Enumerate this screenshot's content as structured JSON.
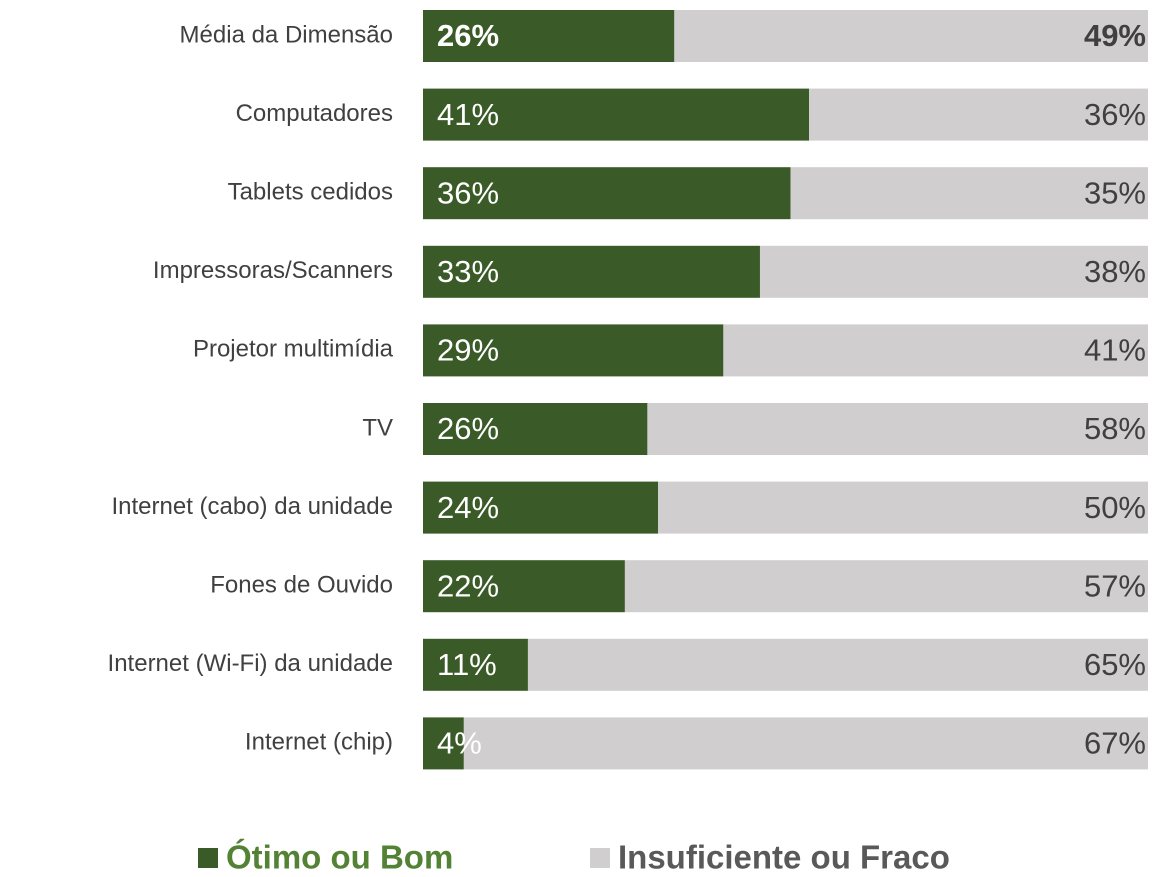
{
  "chart_data": {
    "type": "bar",
    "orientation": "horizontal",
    "stacking": "percent",
    "categories": [
      "Média da Dimensão",
      "Computadores",
      "Tablets cedidos",
      "Impressoras/Scanners",
      "Projetor multimídia",
      "TV",
      "Internet (cabo) da unidade",
      "Fones de Ouvido",
      "Internet (Wi-Fi) da unidade",
      "Internet (chip)"
    ],
    "series": [
      {
        "name": "Ótimo ou Bom",
        "color": "#3a5a27",
        "values": [
          26,
          41,
          36,
          33,
          29,
          26,
          24,
          22,
          11,
          4
        ],
        "value_labels": [
          "26%",
          "41%",
          "36%",
          "33%",
          "29%",
          "26%",
          "24%",
          "22%",
          "11%",
          "4%"
        ]
      },
      {
        "name": "Insuficiente ou Fraco",
        "color": "#d0cece",
        "values": [
          49,
          36,
          35,
          38,
          41,
          58,
          50,
          57,
          65,
          67
        ],
        "value_labels": [
          "49%",
          "36%",
          "35%",
          "38%",
          "41%",
          "58%",
          "50%",
          "57%",
          "65%",
          "67%"
        ]
      }
    ],
    "legend": "bottom"
  }
}
